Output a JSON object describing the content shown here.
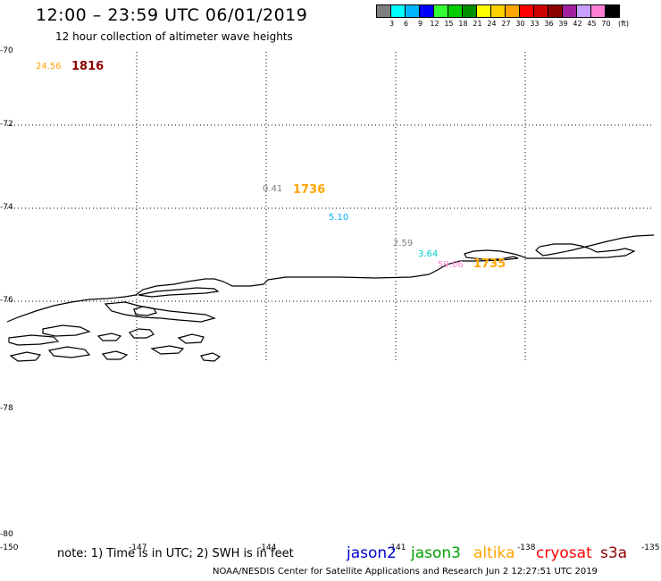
{
  "header": {
    "title": "12:00 – 23:59 UTC 06/01/2019",
    "subtitle": "12 hour collection of altimeter wave heights"
  },
  "legend": {
    "colors": [
      "#7f7f7f",
      "#00ffff",
      "#00b4ff",
      "#0000ff",
      "#33ff33",
      "#00cc00",
      "#008f00",
      "#ffff00",
      "#ffd200",
      "#ffa500",
      "#ff0000",
      "#cd0000",
      "#8b0000",
      "#a020a0",
      "#c8a0ff",
      "#ff7fd4",
      "#000000"
    ],
    "labels": [
      "3",
      "6",
      "9",
      "12",
      "15",
      "18",
      "21",
      "24",
      "27",
      "30",
      "33",
      "36",
      "39",
      "42",
      "45",
      "70"
    ],
    "unit": "(ft)"
  },
  "axes": {
    "lat_labels": [
      "-70",
      "-72",
      "-74",
      "-76",
      "-78",
      "-80"
    ],
    "lon_labels": [
      "-150",
      "-147",
      "-144",
      "-141",
      "-138",
      "-135"
    ]
  },
  "observations": [
    {
      "value": "24.56",
      "color": "#ffa500"
    },
    {
      "value": "0.41",
      "color": "#7f7f7f"
    },
    {
      "value": "5.10",
      "color": "#00b4ff"
    },
    {
      "value": "2.59",
      "color": "#7f7f7f"
    },
    {
      "value": "3.64",
      "color": "#00cccc"
    },
    {
      "value": "59.06",
      "color": "#ff7fd4"
    }
  ],
  "times": [
    {
      "value": "1816",
      "color": "#8b0000"
    },
    {
      "value": "1736",
      "color": "#ffa500"
    },
    {
      "value": "1735",
      "color": "#ffa500"
    }
  ],
  "note": "note:  1) Time is in UTC; 2) SWH is in feet",
  "satellites": [
    {
      "name": "jason2",
      "color": "#0000cc"
    },
    {
      "name": "jason3",
      "color": "#00a000"
    },
    {
      "name": "altika",
      "color": "#ffa500"
    },
    {
      "name": "cryosat",
      "color": "#ff0000"
    },
    {
      "name": "s3a",
      "color": "#8b0000"
    }
  ],
  "footer": "NOAA/NESDIS Center for Satellite Applications and Research    Jun  2 12:27:51 UTC 2019"
}
